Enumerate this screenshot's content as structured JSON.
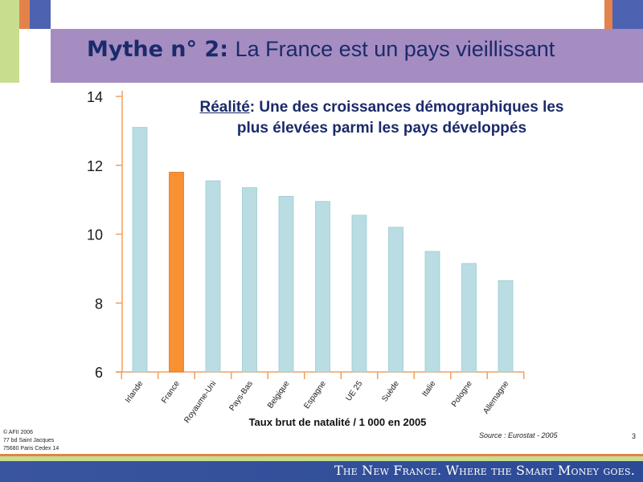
{
  "slide": {
    "title_bold": "Mythe n° 2:",
    "title_rest": "La France est un pays vieillissant",
    "reality_label": "Réalité",
    "reality_text_1": ": Une des croissances démographiques les",
    "reality_text_2": "plus élevées parmi les pays développés",
    "source": "Source : Eurostat - 2005",
    "page_number": "3",
    "copyright": [
      "© AFII 2006",
      "77 bd Saint Jacques",
      "75680 Paris Cedex 14"
    ],
    "footer_tagline": "The New France. Where the Smart Money goes."
  },
  "colors": {
    "bar_default": "#b9dde3",
    "bar_highlight": "#f79133",
    "axis": "#f0a060",
    "title_band": "#a58dc1",
    "title_text": "#1b2a6b"
  },
  "chart_data": {
    "type": "bar",
    "title": "Réalité: Une des croissances démographiques les plus élevées parmi les pays développés",
    "xlabel": "Taux brut de natalité / 1 000 en 2005",
    "ylabel": "",
    "ylim": [
      6,
      14
    ],
    "yticks": [
      6,
      8,
      10,
      12,
      14
    ],
    "categories": [
      "Irlande",
      "France",
      "Royaume-Uni",
      "Pays-Bas",
      "Belgique",
      "Espagne",
      "UE 25",
      "Suède",
      "Italie",
      "Pologne",
      "Allemagne"
    ],
    "values": [
      13.1,
      11.8,
      11.55,
      11.35,
      11.1,
      10.95,
      10.55,
      10.2,
      9.5,
      9.15,
      8.65
    ],
    "highlight": "France"
  }
}
